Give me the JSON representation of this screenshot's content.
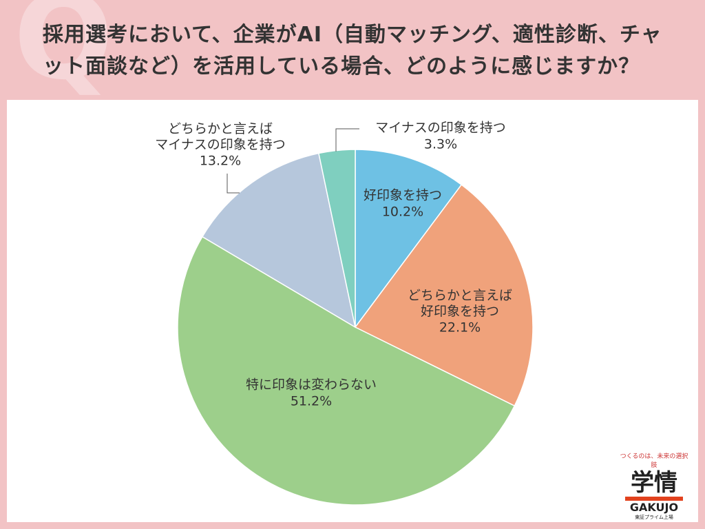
{
  "chart_data": {
    "type": "pie",
    "title": "採用選考において、企業がAI（自動マッチング、適性診断、チャット面談など）を活用している場合、どのように感じますか？",
    "watermark": "Q",
    "categories": [
      "好印象を持つ",
      "どちらかと言えば\n好印象を持つ",
      "特に印象は変わらない",
      "どちらかと言えば\nマイナスの印象を持つ",
      "マイナスの印象を持つ"
    ],
    "values": [
      10.2,
      22.1,
      51.2,
      13.2,
      3.3
    ],
    "value_labels": [
      "10.2%",
      "22.1%",
      "51.2%",
      "13.2%",
      "3.3%"
    ],
    "colors": [
      "#6ec1e4",
      "#f0a27b",
      "#9dcf8b",
      "#b6c7dc",
      "#7fcfbf"
    ]
  },
  "logo": {
    "tagline": "つくるのは、未来の選択肢",
    "mark": "学情",
    "name": "GAKUJO",
    "note": "東証プライム上場"
  }
}
